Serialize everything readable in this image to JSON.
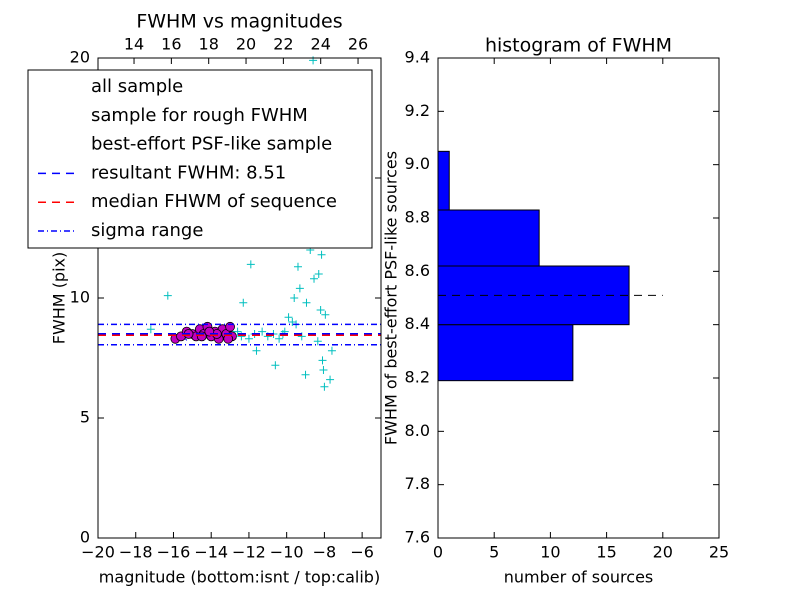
{
  "chart_data": [
    {
      "type": "scatter",
      "title": "FWHM vs magnitudes",
      "xlabel": "magnitude (bottom:isnt / top:calib)",
      "ylabel": "FWHM (pix)",
      "xlim": [
        -20,
        -5
      ],
      "xticks": [
        {
          "value": -20,
          "label": "−20"
        },
        {
          "value": -18,
          "label": "−18"
        },
        {
          "value": -16,
          "label": "−16"
        },
        {
          "value": -14,
          "label": "−14"
        },
        {
          "value": -12,
          "label": "−12"
        },
        {
          "value": -10,
          "label": "−10"
        },
        {
          "value": -8,
          "label": "−8"
        },
        {
          "value": -6,
          "label": "−6"
        }
      ],
      "x2lim": [
        12.07,
        27.23
      ],
      "x2ticks": [
        14,
        16,
        18,
        20,
        22,
        24,
        26
      ],
      "ylim": [
        0,
        20
      ],
      "yticks": [
        0,
        5,
        10,
        15,
        20
      ],
      "legend": "upper left",
      "series": [
        {
          "name": "all sample",
          "marker": "plus",
          "color": "#00bfbf",
          "x": [
            -17.2,
            -16.3,
            -15.8,
            -15.1,
            -14.6,
            -14.0,
            -13.4,
            -12.9,
            -12.4,
            -12.0,
            -11.7,
            -11.3,
            -11.0,
            -10.7,
            -10.4,
            -10.1,
            -9.9,
            -9.6,
            -9.4,
            -9.2,
            -9.0,
            -8.9,
            -8.8,
            -8.7,
            -8.6,
            -8.5,
            -8.4,
            -8.3,
            -8.2,
            -8.1,
            -8.0,
            -7.9,
            -7.8,
            -7.6,
            -7.1,
            -12.3,
            -11.9,
            -10.6,
            -9.8,
            -9.5,
            -9.3,
            -9.1,
            -8.95,
            -8.85,
            -8.75,
            -8.65,
            -8.55,
            -8.45,
            -8.35,
            -8.25,
            -8.15,
            -8.05,
            -7.95,
            -7.7,
            -8.6,
            -8.9,
            -9.7,
            -10.2,
            -11.6,
            -12.6
          ],
          "values": [
            8.7,
            10.1,
            8.3,
            8.5,
            8.6,
            8.4,
            8.5,
            8.6,
            8.4,
            8.3,
            8.5,
            8.6,
            8.4,
            8.5,
            8.3,
            8.6,
            9.2,
            10.0,
            11.3,
            8.4,
            6.8,
            13.5,
            15.2,
            17.0,
            19.9,
            14.1,
            12.6,
            11.0,
            9.5,
            7.4,
            6.3,
            16.2,
            13.8,
            7.8,
            12.3,
            9.8,
            11.4,
            7.2,
            12.5,
            8.9,
            10.4,
            14.6,
            9.8,
            16.6,
            12.0,
            18.2,
            10.8,
            15.5,
            8.2,
            13.0,
            11.8,
            7.0,
            9.3,
            6.6,
            15.9,
            12.4,
            9.0,
            8.5,
            7.8,
            8.6
          ]
        },
        {
          "name": "sample for rough FWHM",
          "marker": "x",
          "color": "#0000ff",
          "x": [
            -15.5,
            -14.2,
            -13.3
          ],
          "values": [
            8.4,
            8.5,
            8.6
          ]
        },
        {
          "name": "best-effort PSF-like sample",
          "marker": "circle",
          "color": "#bf00bf",
          "x": [
            -15.9,
            -15.6,
            -15.3,
            -15.0,
            -14.8,
            -14.6,
            -14.4,
            -14.2,
            -14.0,
            -13.8,
            -13.6,
            -13.4,
            -13.2,
            -13.0,
            -12.9,
            -14.5,
            -13.7,
            -13.1,
            -15.2,
            -14.1
          ],
          "values": [
            8.3,
            8.4,
            8.6,
            8.5,
            8.4,
            8.7,
            8.5,
            8.8,
            8.4,
            8.6,
            8.3,
            8.7,
            8.5,
            8.8,
            8.4,
            8.4,
            8.5,
            8.3,
            8.5,
            8.6
          ]
        }
      ],
      "hlines": [
        {
          "name": "resultant FWHM: 8.51",
          "color": "#0000ff",
          "style": "dashed",
          "values": [
            8.51
          ]
        },
        {
          "name": "median FHWM of sequence",
          "color": "#ff0000",
          "style": "dashed",
          "values": [
            8.45
          ]
        },
        {
          "name": "sigma range",
          "color": "#0000ff",
          "style": "dashdot",
          "values": [
            8.05,
            8.9
          ]
        }
      ]
    },
    {
      "type": "histogram",
      "orientation": "horizontal",
      "title": "histogram of FWHM",
      "xlabel": "number of sources",
      "ylabel": "FWHM of best-effort PSF-like sources",
      "xlim": [
        0,
        25
      ],
      "xticks": [
        0,
        5,
        10,
        15,
        20,
        25
      ],
      "ylim": [
        7.6,
        9.4
      ],
      "yticks": [
        7.6,
        7.8,
        {
          "value": 8.0,
          "label": "8.0"
        },
        8.2,
        8.4,
        8.6,
        8.8,
        {
          "value": 9.0,
          "label": "9.0"
        },
        9.2,
        9.4
      ],
      "bins": [
        8.19,
        8.4,
        8.62,
        8.83,
        9.05
      ],
      "values": [
        12,
        17,
        9,
        1
      ],
      "color": "#0000ff",
      "hline": {
        "value": 8.51,
        "x_end": 20,
        "color": "#000000",
        "style": "dashed"
      }
    }
  ]
}
